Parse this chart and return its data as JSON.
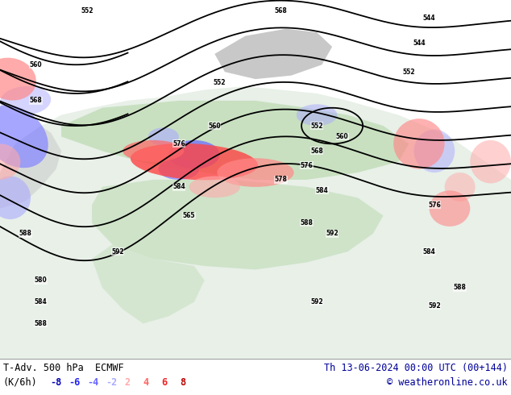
{
  "title_left": "T-Adv. 500 hPa  ECMWF",
  "title_right": "Th 13-06-2024 00:00 UTC (00+144)",
  "legend_unit": "(K/6h)",
  "legend_values": [
    -8,
    -6,
    -4,
    -2,
    2,
    4,
    6,
    8
  ],
  "legend_colors_neg": [
    "#0000bb",
    "#2222ee",
    "#6666ff",
    "#aaaaff"
  ],
  "legend_colors_pos": [
    "#ffaaaa",
    "#ff6666",
    "#ee2222",
    "#bb0000"
  ],
  "copyright": "© weatheronline.co.uk",
  "bg_color": "#ffffff",
  "font_color_left": "#000000",
  "font_color_right": "#000099",
  "copyright_color": "#000099",
  "figsize": [
    6.34,
    4.9
  ],
  "dpi": 100,
  "map_ocean_color": "#cde0f0",
  "map_land_light": "#e8f0e8",
  "map_land_green": "#c8e0c0",
  "map_land_gray": "#c8c8c8",
  "contour_color": "#000000",
  "contour_lw": 1.3,
  "warm_adv_colors": [
    "#ff0000",
    "#ff4444",
    "#ff8888",
    "#ffaaaa",
    "#ffcccc"
  ],
  "cold_adv_colors": [
    "#0000ff",
    "#4444ff",
    "#8888ff",
    "#aaaaff",
    "#ccccff"
  ]
}
